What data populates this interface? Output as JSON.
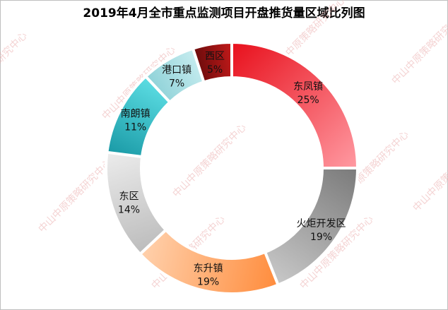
{
  "chart_data": {
    "type": "pie",
    "donut": true,
    "title": "2019年4月全市重点监测项目开盘推货量区域比列图",
    "unit": "%",
    "slices": [
      {
        "label": "东凤镇",
        "value": 25,
        "display": "25%",
        "color_light": "#ff9aa2",
        "color_dark": "#e8101c"
      },
      {
        "label": "火炬开发区",
        "value": 19,
        "display": "19%",
        "color_light": "#c8c8c8",
        "color_dark": "#7a7a7a"
      },
      {
        "label": "东升镇",
        "value": 19,
        "display": "19%",
        "color_light": "#ffd1ad",
        "color_dark": "#ff8c3c"
      },
      {
        "label": "东区",
        "value": 14,
        "display": "14%",
        "color_light": "#ececec",
        "color_dark": "#bcbcbc"
      },
      {
        "label": "南朗镇",
        "value": 11,
        "display": "11%",
        "color_light": "#5cdde3",
        "color_dark": "#1a9aa6"
      },
      {
        "label": "港口镇",
        "value": 7,
        "display": "7%",
        "color_light": "#c6ecef",
        "color_dark": "#8fd2d8"
      },
      {
        "label": "西区",
        "value": 5,
        "display": "5%",
        "color_light": "#c21a1a",
        "color_dark": "#6a0b0b"
      }
    ]
  },
  "watermark": "中山中原策略研究中心"
}
